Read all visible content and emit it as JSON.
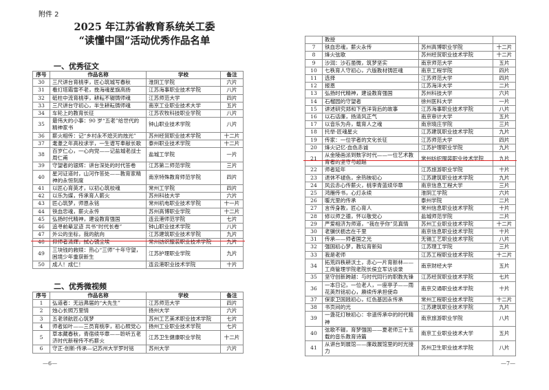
{
  "attachment": "附件 2",
  "title_line1": "2025 年江苏省教育系统关工委",
  "title_line2": "“读懂中国”活动优秀作品名单",
  "section1": {
    "heading": "一、优秀征文",
    "headers": [
      "序号",
      "作品名称",
      "学校",
      "备注"
    ],
    "rows": [
      [
        "30",
        "三尺讲台育桃李，匠心筑城写春秋",
        "淮阴工学院",
        "六片"
      ],
      [
        "31",
        "看灯塔霜雪不老，挽海魂星旗高扬",
        "江苏海事职业技术学院",
        "八片"
      ],
      [
        "32",
        "砥柱中流育桃李，耕耘不辍铸师魂",
        "江苏师范大学",
        "四片"
      ],
      [
        "33",
        "三尺讲台守初心，半生耕耘铸师魂",
        "南京工业职业技术大学",
        "五片"
      ],
      [
        "34",
        "车轮上的教育长征",
        "江苏农牧科技职业学院",
        "八片"
      ],
      [
        "35",
        "最伟大的小事：90 岁“五老”给世代的精神家书",
        "钟山职业技术学院",
        "八片"
      ],
      [
        "36",
        "薪火相传：记“乡村永不熄灭的烛光”",
        "苏州经贸职业技术学院",
        "十二片"
      ],
      [
        "37",
        "耄耋之年高校求学，一生谱写奉献长歌",
        "泰州职业技术学院",
        "十二片"
      ],
      [
        "38",
        "百岁仁心，一心向党——记盐城老战士周仁甫",
        "盐城工学院",
        "一片"
      ],
      [
        "39",
        "守望者的银辉：讲台深处的时代答卷",
        "江苏第二师范学院",
        "三片"
      ],
      [
        "40",
        "星河证道时，山河作答处——教育家精神的永恒刻度",
        "南京特殊教育师范学院",
        "四片"
      ],
      [
        "41",
        "以匠心育英才，以初心筑校魂",
        "常州工学院",
        "四片"
      ],
      [
        "42",
        "以乐为媒，传承育人薪火",
        "苏州科技大学",
        "六片"
      ],
      [
        "43",
        "匠心筑梦，师恩永铭",
        "常州机电职业技术学院",
        "十一片"
      ],
      [
        "44",
        "铁血忠魂，薪火永传",
        "苏州高博职业学院",
        "十二片"
      ],
      [
        "45",
        "弘扬时代精神，建设教育强国",
        "连云港师范学院",
        "七片"
      ],
      [
        "46",
        "追寻前辈足迹 共书“时代长卷”",
        "钟山职业技术学院",
        "八片"
      ],
      [
        "47",
        "外公的坐标，我的航向",
        "江苏建筑职业技术学院",
        "九片"
      ],
      [
        "48",
        "仰师者清辉，拭心镜尘埃",
        "常州纺织服装职业技术学院",
        "九片"
      ],
      [
        "49",
        "三块钱的救赎：热心“三师”十年守望，困境少年重获新生",
        "江苏护理职业学院",
        "九片"
      ],
      [
        "50",
        "成人！成仁！",
        "连云港职业技术学院",
        "十片"
      ]
    ]
  },
  "section2": {
    "heading": "二、优秀微视频",
    "headers": [
      "序号",
      "作品名称",
      "学校",
      "备注"
    ],
    "rows": [
      [
        "1",
        "弘道者：无远弗届的“大先生”",
        "江苏师范大学",
        "四片"
      ],
      [
        "2",
        "烛心长照万里情",
        "扬州大学",
        "六片"
      ],
      [
        "3",
        "五老领航匠心筑梦",
        "苏州工艺美术职业技术学院",
        "七片"
      ],
      [
        "4",
        "师者如叶——三员育桃李，初心照党心",
        "扬州工业职业技术学院",
        "七片"
      ],
      [
        "5",
        "草本藏春秋，青宿续华章——聆听五老济时代新程传不朽薪火",
        "江苏卫生健康职业学院",
        "十二片"
      ],
      [
        "6",
        "守正·创新·传承—记苏州大学罗时铭",
        "苏州大学",
        "六片"
      ],
      [
        "",
        "教授",
        "",
        ""
      ],
      [
        "7",
        "铁血忠魂，薪火永传",
        "苏州高博职业学院",
        "十二片"
      ],
      [
        "8",
        "烽火弦歌",
        "苏州经贸职业技术学院",
        "十二片"
      ],
      [
        "9",
        "沙润：沙石虽微，筑梦坚实",
        "南京师范大学",
        "五片"
      ],
      [
        "10",
        "七秩育人守初心，六版教材铸匠魂",
        "南京工程学院",
        "四片"
      ],
      [
        "11",
        "选择",
        "江苏师范大学",
        "四片"
      ],
      [
        "12",
        "报恩",
        "江苏海洋大学",
        "二片"
      ],
      [
        "13",
        "弘扬时代精神，建设教育强国",
        "苏州科技大学",
        "六片"
      ],
      [
        "14",
        "石榴园的守望者",
        "徐州医科大学",
        "一片"
      ],
      [
        "15",
        "讲述研究郑和下西洋背后的故事",
        "江苏海事职业技术学院",
        "八片"
      ],
      [
        "16",
        "以石话廉，扬清风正气",
        "南京审计大学",
        "五片"
      ],
      [
        "17",
        "以音乐为舟，载育人之魂",
        "南京晓庄学院",
        "三片"
      ],
      [
        "18",
        "托举·匠魂星火",
        "江苏建筑职业技术学院",
        "九片"
      ],
      [
        "19",
        "传家：一位学者的文化长征",
        "江苏师范大学",
        "四片"
      ],
      [
        "20",
        "烽火记忆·血色赤诚",
        "江苏护理职业学院",
        "九片"
      ],
      [
        "21",
        "从金陵画派到数字时代——一位艺术教育者的坚守与超越",
        "常州纺织服装职业技术学院",
        "九片"
      ],
      [
        "22",
        "师者延年",
        "江苏旅游职业学院",
        "十片"
      ],
      [
        "23",
        "退休不褪色，余热映初心",
        "江苏建筑职业技术学院",
        "九片"
      ],
      [
        "24",
        "风云赤心传薪火，桃李青蓝续华章",
        "南京信息工程大学",
        "三片"
      ],
      [
        "25",
        "鸿雁传书，心灯永续",
        "淮阴工学院",
        "六片"
      ],
      [
        "26",
        "暖光里的传承",
        "泰州学院",
        "二片"
      ],
      [
        "27",
        "言传身教，匠心育人",
        "常州信息职业技术学院",
        "十片"
      ],
      [
        "28",
        "修以师之德，怀以敬党心",
        "盐城师范学院",
        "二片"
      ],
      [
        "29",
        "严爱相济为师道，“我在乎你”见真情",
        "苏州工业职业技术学院",
        "十二片"
      ],
      [
        "30",
        "老骥伏枥志在千里",
        "南京信息职业技术学院",
        "十片"
      ],
      [
        "31",
        "传承——师者国之光",
        "无锡工艺职业技术学院",
        "八片"
      ],
      [
        "32",
        "强国初心梦，教坛育新知",
        "江苏理工学院",
        "三片"
      ],
      [
        "33",
        "我是老师",
        "江苏工程职业技术学院",
        "十二片"
      ],
      [
        "34",
        "拓荒四秩耕沃土，赤心一片育新林——工商管理学院老院长侯立军访谈录",
        "南京财经大学",
        "五片"
      ],
      [
        "35",
        "坚守创新跨越：与时代同行的职教先锋",
        "江苏经贸职业技术学院",
        "七片"
      ],
      [
        "36",
        "一本日记，一位老人，一座亭子——雨花英烈铭初心，赓续传承担使命",
        "南京交通职业技术学院",
        "十片"
      ],
      [
        "37",
        "保家卫国践初心，红色基因永传承",
        "常州工程职业技术学院",
        "十二片"
      ],
      [
        "38",
        "书页间的光",
        "江苏建筑职业技术学院",
        "九片"
      ],
      [
        "39",
        "一盏花灯映初心：非遗传承中的时代精神",
        "南京旅游职业学院",
        "八片"
      ],
      [
        "40",
        "弦歌不辍，育梦强国——夏老师三十五载的音乐教育诗篇",
        "南京工业职业技术大学",
        "五片"
      ],
      [
        "41",
        "从讲台到展馆——廉政展馆里的时光接力",
        "苏州卫生职业技术学院",
        "八片"
      ]
    ]
  },
  "page_left": "—6—",
  "page_right": "—7—",
  "highlight_color": "#e02020"
}
